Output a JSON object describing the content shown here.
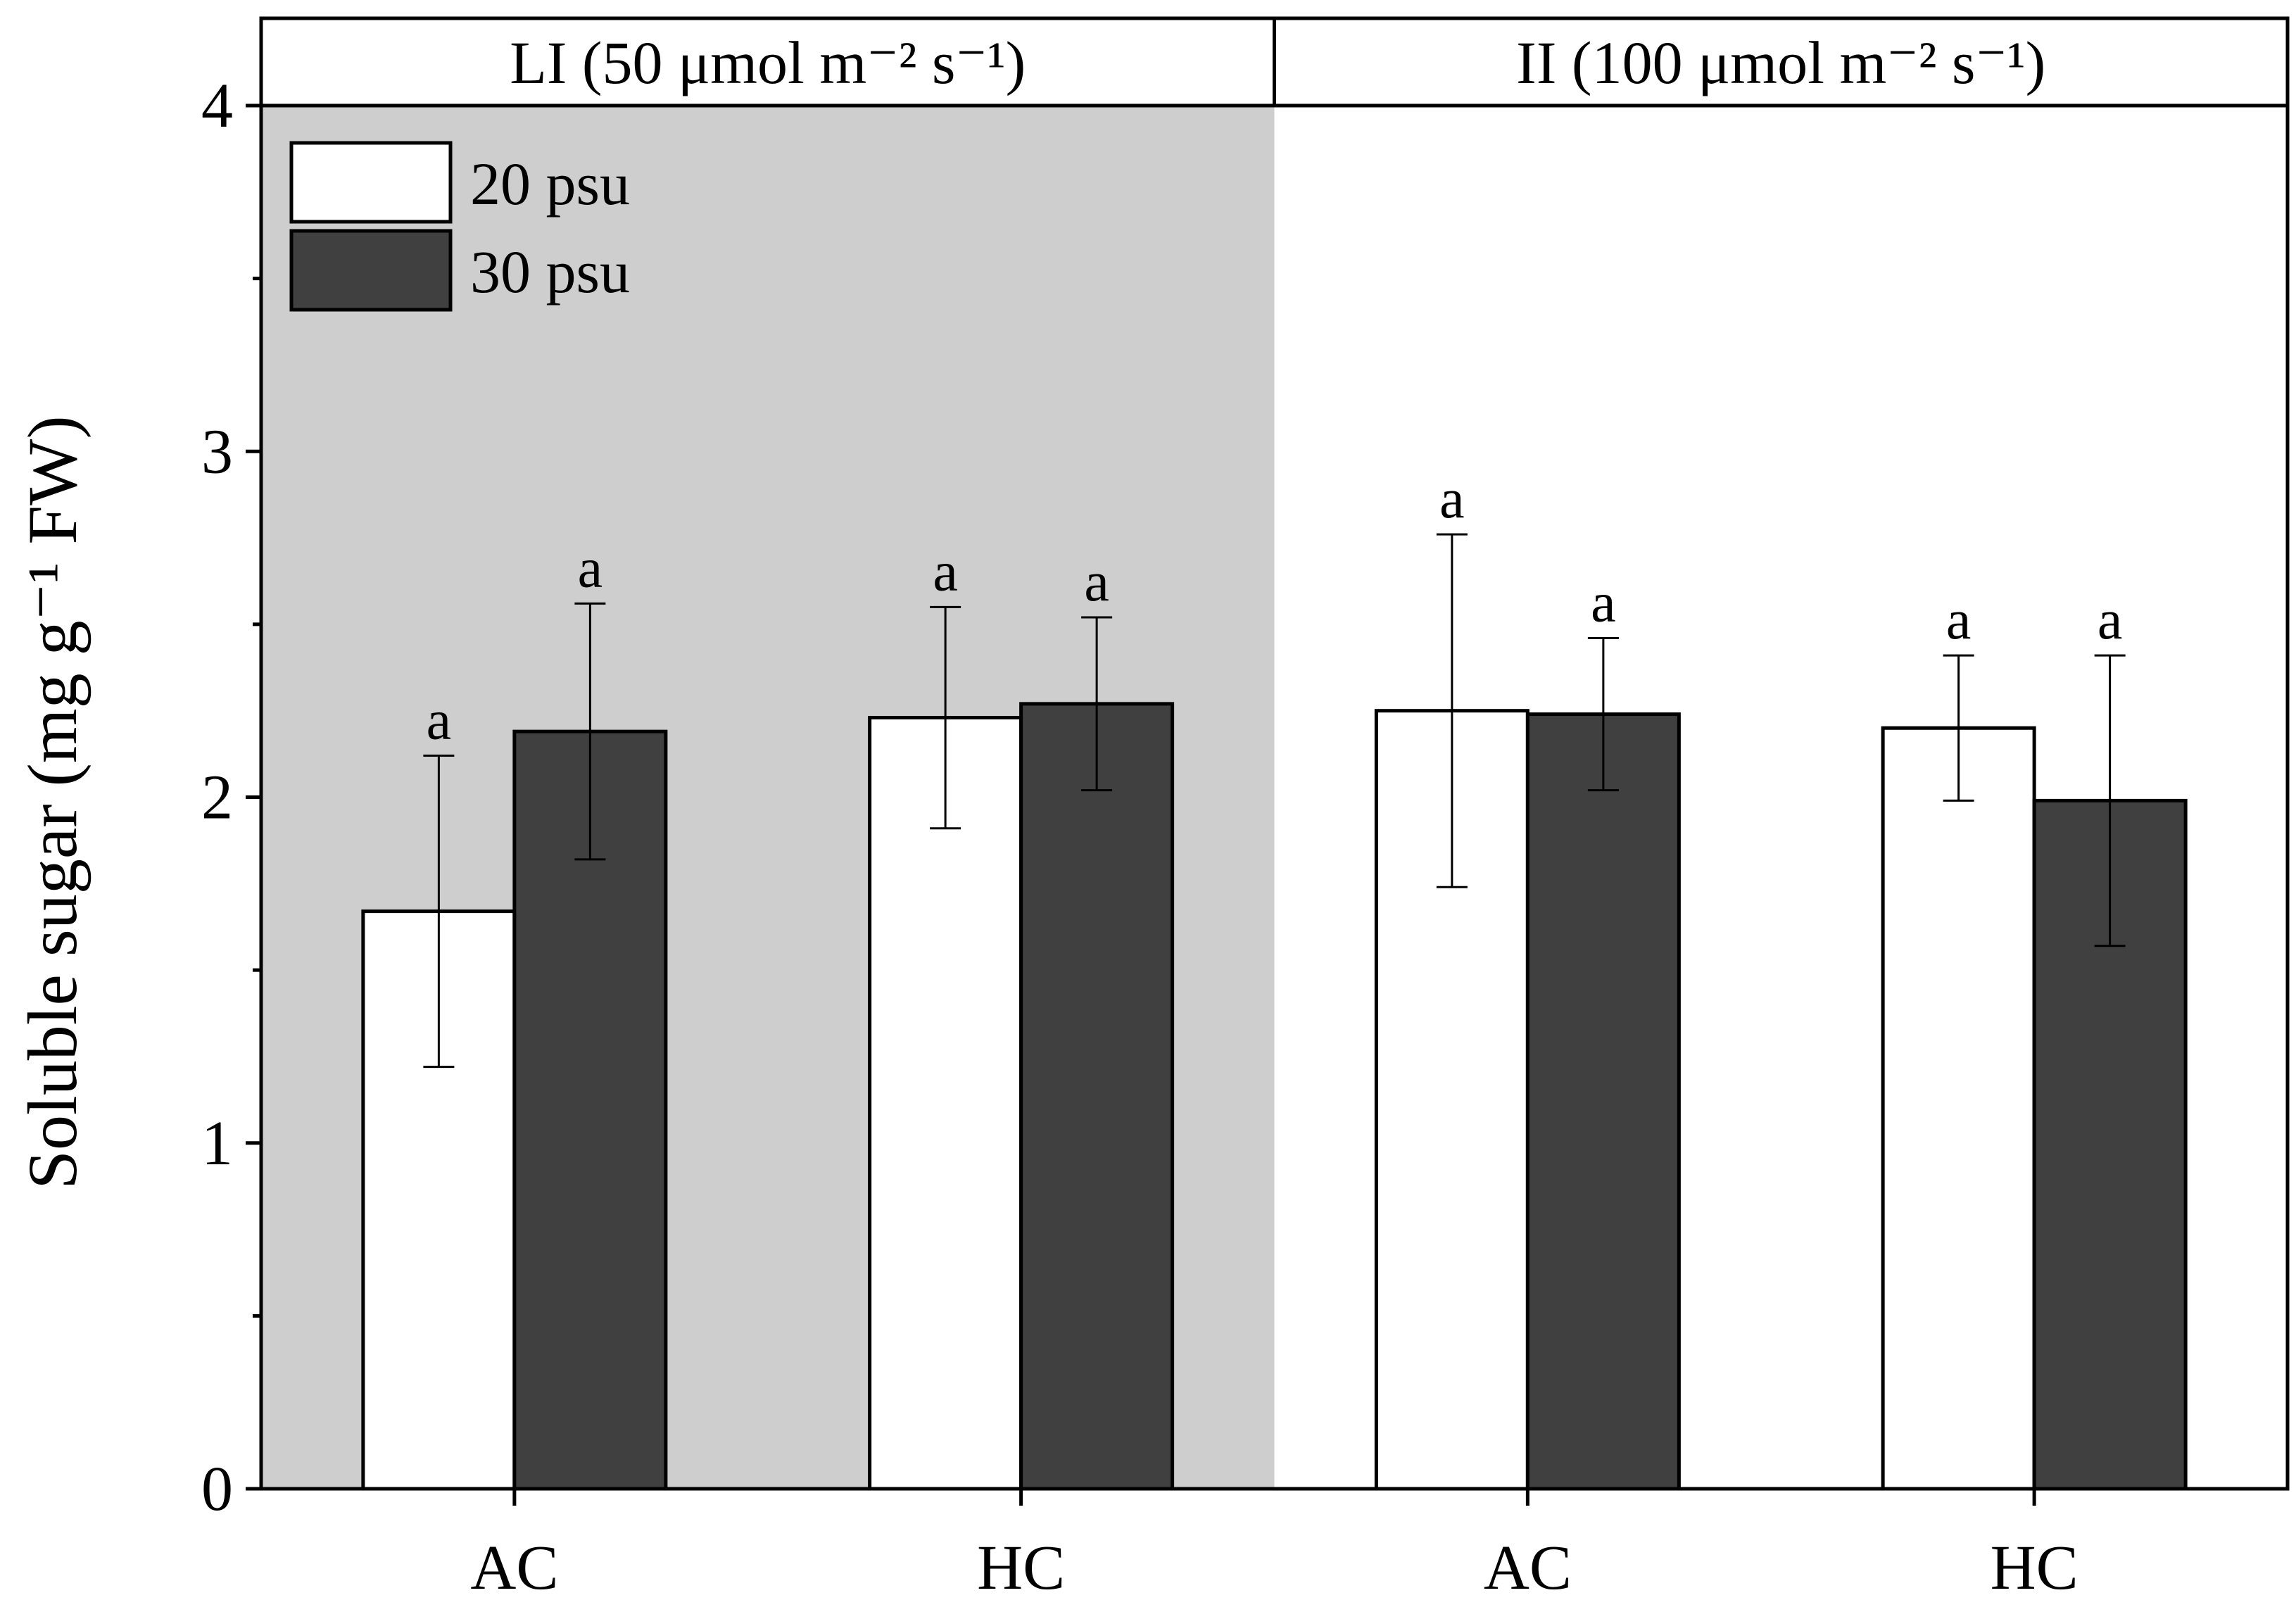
{
  "chart_data": {
    "type": "bar",
    "ylabel": "Soluble sugar (mg g⁻¹ FW)",
    "ylim": [
      0,
      4
    ],
    "yticks": [
      "0",
      "1",
      "2",
      "3",
      "4"
    ],
    "categories": [
      "AC",
      "HC",
      "AC",
      "HC"
    ],
    "panels": [
      {
        "label": "LI (50 μmol m⁻² s⁻¹)",
        "shaded": true,
        "shade_color": "#cecece"
      },
      {
        "label": "II (100 μmol m⁻² s⁻¹)",
        "shaded": false,
        "shade_color": "#ffffff"
      }
    ],
    "series": [
      {
        "name": "20 psu",
        "color": "#ffffff",
        "values": [
          1.67,
          2.23,
          2.25,
          2.2
        ],
        "errors": [
          0.45,
          0.32,
          0.51,
          0.21
        ],
        "letters": [
          "a",
          "a",
          "a",
          "a"
        ]
      },
      {
        "name": "30 psu",
        "color": "#404040",
        "values": [
          2.19,
          2.27,
          2.24,
          1.99
        ],
        "errors": [
          0.37,
          0.25,
          0.22,
          0.42
        ],
        "letters": [
          "a",
          "a",
          "a",
          "a"
        ]
      }
    ]
  }
}
